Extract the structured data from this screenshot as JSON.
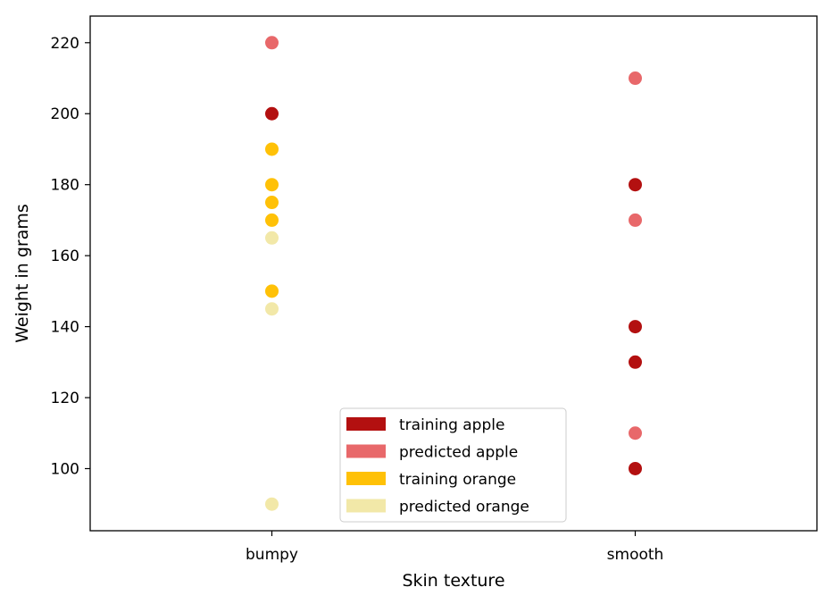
{
  "chart_data": {
    "type": "scatter",
    "title": "",
    "xlabel": "Skin texture",
    "ylabel": "Weight in grams",
    "categories": [
      "bumpy",
      "smooth"
    ],
    "xlim": [
      -0.5,
      1.5
    ],
    "ylim": [
      82.5,
      227.5
    ],
    "yticks": [
      100,
      120,
      140,
      160,
      180,
      200,
      220
    ],
    "grid": false,
    "legend_position": "bottom-center",
    "series": [
      {
        "name": "training apple",
        "color": "#b31010",
        "points": [
          {
            "x": "bumpy",
            "y": 200
          },
          {
            "x": "smooth",
            "y": 180
          },
          {
            "x": "smooth",
            "y": 140
          },
          {
            "x": "smooth",
            "y": 130
          },
          {
            "x": "smooth",
            "y": 100
          }
        ]
      },
      {
        "name": "predicted apple",
        "color": "#e8686a",
        "points": [
          {
            "x": "bumpy",
            "y": 220
          },
          {
            "x": "smooth",
            "y": 210
          },
          {
            "x": "smooth",
            "y": 170
          },
          {
            "x": "smooth",
            "y": 110
          }
        ]
      },
      {
        "name": "training orange",
        "color": "#ffc107",
        "points": [
          {
            "x": "bumpy",
            "y": 190
          },
          {
            "x": "bumpy",
            "y": 180
          },
          {
            "x": "bumpy",
            "y": 175
          },
          {
            "x": "bumpy",
            "y": 170
          },
          {
            "x": "bumpy",
            "y": 150
          }
        ]
      },
      {
        "name": "predicted orange",
        "color": "#f2e8a8",
        "points": [
          {
            "x": "bumpy",
            "y": 165
          },
          {
            "x": "bumpy",
            "y": 145
          },
          {
            "x": "bumpy",
            "y": 90
          }
        ]
      }
    ]
  }
}
